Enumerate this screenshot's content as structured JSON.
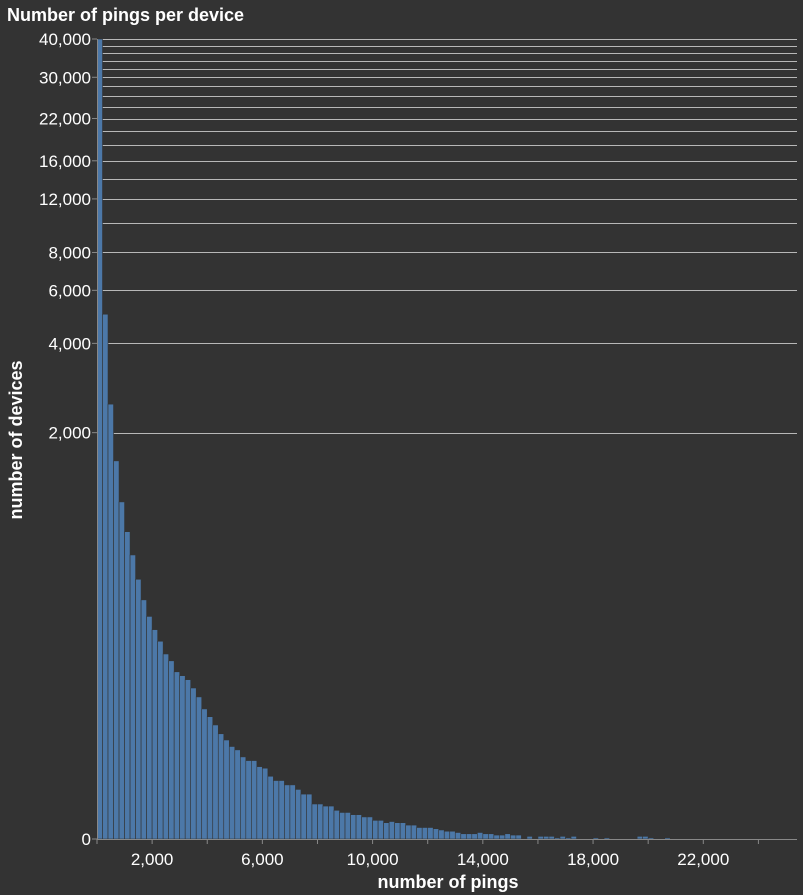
{
  "chart_data": {
    "type": "bar",
    "title": "Number of pings per device",
    "xlabel": "number of pings",
    "ylabel": "number of devices",
    "y_scale": "symlog",
    "grid": true,
    "xlim": [
      0,
      25400
    ],
    "ylim": [
      0,
      40000
    ],
    "x_ticks": [
      2000,
      6000,
      10000,
      14000,
      18000,
      22000
    ],
    "x_tick_labels": [
      "2,000",
      "6,000",
      "10,000",
      "14,000",
      "18,000",
      "22,000"
    ],
    "y_ticks": [
      0,
      2000,
      4000,
      6000,
      8000,
      12000,
      16000,
      22000,
      30000,
      40000
    ],
    "y_tick_labels": [
      "0",
      "2,000",
      "4,000",
      "6,000",
      "8,000",
      "12,000",
      "16,000",
      "22,000",
      "30,000",
      "40,000"
    ],
    "bin_width": 200,
    "bins_start": [
      0,
      200,
      400,
      600,
      800,
      1000,
      1200,
      1400,
      1600,
      1800,
      2000,
      2200,
      2400,
      2600,
      2800,
      3000,
      3200,
      3400,
      3600,
      3800,
      4000,
      4200,
      4400,
      4600,
      4800,
      5000,
      5200,
      5400,
      5600,
      5800,
      6000,
      6200,
      6400,
      6600,
      6800,
      7000,
      7200,
      7400,
      7600,
      7800,
      8000,
      8200,
      8400,
      8600,
      8800,
      9000,
      9200,
      9400,
      9600,
      9800,
      10000,
      10200,
      10400,
      10600,
      10800,
      11000,
      11200,
      11400,
      11600,
      11800,
      12000,
      12200,
      12400,
      12600,
      12800,
      13000,
      13200,
      13400,
      13600,
      13800,
      14000,
      14200,
      14400,
      14600,
      14800,
      15000,
      15200,
      15400,
      15600,
      15800,
      16000,
      16200,
      16400,
      16600,
      16800,
      17000,
      17200,
      17400,
      17600,
      17800,
      18000,
      18200,
      18400,
      18600,
      18800,
      19000,
      19200,
      19400,
      19600,
      19800,
      20000,
      20200,
      20400,
      20600,
      20800
    ],
    "values": [
      40000,
      5000,
      2500,
      1600,
      1150,
      900,
      740,
      600,
      500,
      430,
      380,
      340,
      300,
      280,
      250,
      240,
      230,
      210,
      190,
      165,
      150,
      135,
      120,
      110,
      100,
      95,
      85,
      80,
      80,
      72,
      70,
      60,
      55,
      55,
      50,
      50,
      45,
      40,
      40,
      30,
      30,
      28,
      28,
      24,
      22,
      22,
      20,
      20,
      18,
      18,
      15,
      15,
      13,
      14,
      13,
      13,
      11,
      11,
      9,
      9,
      9,
      8,
      7,
      6,
      6,
      5,
      4,
      4,
      4,
      5,
      4,
      4,
      3,
      3,
      4,
      3,
      3,
      0,
      2,
      0,
      2,
      2,
      2,
      1,
      2,
      1,
      2,
      0,
      0,
      0,
      1,
      0,
      1,
      0,
      0,
      0,
      0,
      0,
      2,
      2,
      1,
      0,
      0,
      1,
      0
    ]
  }
}
